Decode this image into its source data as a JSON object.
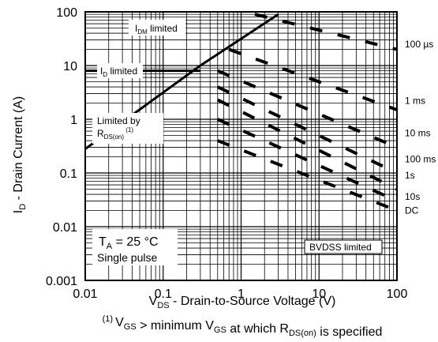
{
  "chart_data": {
    "type": "line",
    "title": "",
    "xlabel": "V_DS - Drain-to-Source Voltage (V)",
    "ylabel": "I_D - Drain Current (A)",
    "footnote": {
      "marker": "(1)",
      "parts": [
        {
          "t": "V",
          "sub": "GS"
        },
        {
          "t": " > minimum V",
          "sub": "GS"
        },
        {
          "t": " at which R",
          "sub": "DS(on)"
        },
        {
          "t": " is specified",
          "sub": ""
        }
      ]
    },
    "x_scale": "log",
    "y_scale": "log",
    "xlim": [
      0.01,
      100
    ],
    "ylim": [
      0.001,
      100
    ],
    "x_ticks": [
      {
        "v": 0.01,
        "label": "0.01"
      },
      {
        "v": 0.1,
        "label": "0.1"
      },
      {
        "v": 1,
        "label": "1"
      },
      {
        "v": 10,
        "label": "10"
      },
      {
        "v": 100,
        "label": "100"
      }
    ],
    "y_ticks": [
      {
        "v": 100,
        "label": "100"
      },
      {
        "v": 10,
        "label": "10"
      },
      {
        "v": 1,
        "label": "1"
      },
      {
        "v": 0.1,
        "label": "0.1"
      },
      {
        "v": 0.01,
        "label": "0.01"
      },
      {
        "v": 0.001,
        "label": "0.001"
      }
    ],
    "grid": true,
    "series": [
      {
        "name": "RDS(on) limit",
        "style": "solid",
        "points": [
          [
            0.01,
            0.28
          ],
          [
            0.3,
            10
          ],
          [
            3,
            90
          ]
        ]
      },
      {
        "name": "ID limit",
        "style": "solid",
        "points": [
          [
            0.01,
            8
          ],
          [
            0.3,
            8
          ]
        ]
      },
      {
        "name": "100 µs",
        "style": "dashed",
        "points": [
          [
            1.5,
            90
          ],
          [
            100,
            20
          ]
        ]
      },
      {
        "name": "1 ms",
        "style": "dashed",
        "points": [
          [
            0.7,
            20
          ],
          [
            100,
            1.5
          ]
        ]
      },
      {
        "name": "10 ms",
        "style": "dashed",
        "points": [
          [
            0.5,
            8
          ],
          [
            100,
            0.3
          ]
        ]
      },
      {
        "name": "100 ms",
        "style": "dashed",
        "points": [
          [
            0.5,
            4
          ],
          [
            100,
            0.1
          ]
        ]
      },
      {
        "name": "1s",
        "style": "dashed",
        "points": [
          [
            0.5,
            2.3
          ],
          [
            100,
            0.05
          ]
        ]
      },
      {
        "name": "10s",
        "style": "dashed",
        "points": [
          [
            0.5,
            1
          ],
          [
            100,
            0.03
          ]
        ]
      },
      {
        "name": "DC",
        "style": "dashed",
        "points": [
          [
            0.5,
            0.4
          ],
          [
            100,
            0.02
          ]
        ]
      }
    ],
    "right_labels": [
      {
        "text": "100 µs",
        "y": 25
      },
      {
        "text": "1 ms",
        "y": 2.2
      },
      {
        "text": "10 ms",
        "y": 0.55
      },
      {
        "text": "100 ms",
        "y": 0.18
      },
      {
        "text": "1s",
        "y": 0.09
      },
      {
        "text": "10s",
        "y": 0.036
      },
      {
        "text": "DC",
        "y": 0.02
      }
    ],
    "annotations": {
      "idm": {
        "main": "I",
        "sub": "DM",
        "rest": " limited"
      },
      "id": {
        "main": "I",
        "sub": "D",
        "rest": " limited"
      },
      "rds_line1": "Limited by",
      "rds_line2": {
        "main": "R",
        "sub": "DS(on)",
        "sup": "(1)"
      },
      "ta": {
        "main": "T",
        "sub": "A",
        "rest": " = 25 °C"
      },
      "pulse": "Single pulse",
      "bvdss": "BVDSS limited"
    },
    "colors": {
      "grid": "#000000",
      "line": "#000000"
    }
  }
}
